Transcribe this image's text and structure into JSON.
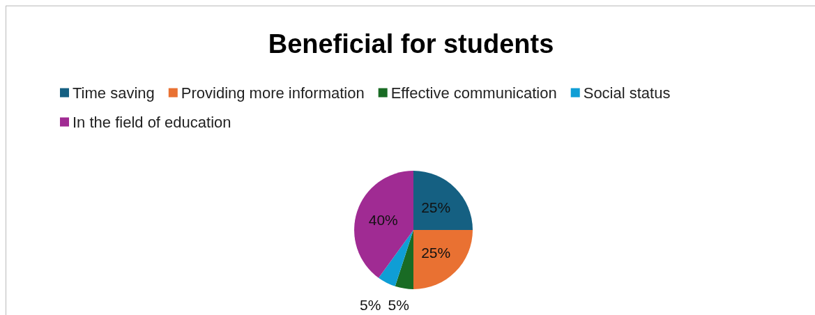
{
  "chart_data": {
    "type": "pie",
    "title": "Beneficial for students",
    "categories": [
      "Time saving",
      "Providing more information",
      "Effective communication",
      "Social status",
      "In the field of education"
    ],
    "values": [
      25,
      25,
      5,
      5,
      40
    ],
    "value_labels": [
      "25%",
      "25%",
      "5%",
      "5%",
      "40%"
    ],
    "colors": [
      "#156082",
      "#e97132",
      "#196b24",
      "#0f9ed5",
      "#a02b93"
    ],
    "legend": "top"
  }
}
